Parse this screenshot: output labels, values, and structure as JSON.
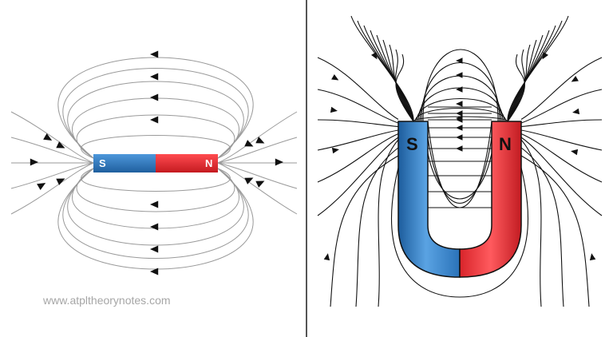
{
  "bar_magnet": {
    "south_label": "S",
    "north_label": "N",
    "south_color": "#2e7bc4",
    "north_color": "#e8262c"
  },
  "horseshoe_magnet": {
    "south_label": "S",
    "north_label": "N",
    "south_color": "#2f7fc8",
    "north_color": "#e8262c"
  },
  "field_line_color": "#9a9a9a",
  "horseshoe_line_color": "#111111",
  "watermark": "www.atpltheorynotes.com"
}
